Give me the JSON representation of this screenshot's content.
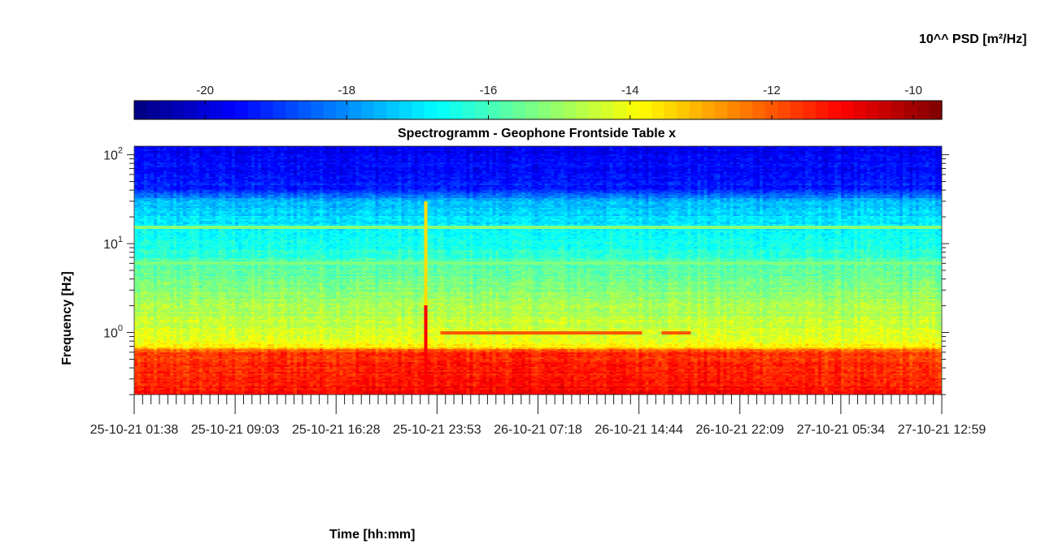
{
  "chart_data": {
    "type": "heatmap",
    "title": "Spectrogramm - Geophone Frontside Table x",
    "xlabel": "Time [hh:mm]",
    "ylabel": "Frequency [Hz]",
    "y_scale": "log",
    "ylim_hz": [
      0.2,
      125
    ],
    "y_ticks": [
      {
        "value": 1,
        "base": "10",
        "exp": "0"
      },
      {
        "value": 10,
        "base": "10",
        "exp": "1"
      },
      {
        "value": 100,
        "base": "10",
        "exp": "2"
      }
    ],
    "x_ticks": [
      "25-10-21  01:38",
      "25-10-21  09:03",
      "25-10-21  16:28",
      "25-10-21  23:53",
      "26-10-21  07:18",
      "26-10-21  14:44",
      "26-10-21  22:09",
      "27-10-21  05:34",
      "27-10-21  12:59"
    ],
    "colorbar": {
      "label": "10^^ PSD [m²/Hz]",
      "range": [
        -21,
        -9.6
      ],
      "ticks": [
        -20,
        -18,
        -16,
        -14,
        -12,
        -10
      ],
      "colormap": "jet",
      "location": "top"
    },
    "psd_profile": [
      {
        "freq_hz": 0.2,
        "log10_psd": -11.3
      },
      {
        "freq_hz": 0.6,
        "log10_psd": -11.8
      },
      {
        "freq_hz": 0.7,
        "log10_psd": -13.8
      },
      {
        "freq_hz": 1.0,
        "log10_psd": -14.3
      },
      {
        "freq_hz": 3.0,
        "log10_psd": -15.2
      },
      {
        "freq_hz": 10.0,
        "log10_psd": -16.5
      },
      {
        "freq_hz": 30.0,
        "log10_psd": -17.5
      },
      {
        "freq_hz": 40.0,
        "log10_psd": -19.2
      },
      {
        "freq_hz": 125.0,
        "log10_psd": -19.8
      }
    ],
    "features": [
      {
        "kind": "horizontal-line",
        "freq_hz": 15,
        "log10_psd": -15.2
      },
      {
        "kind": "horizontal-line",
        "freq_hz": 6,
        "log10_psd": -15.3
      },
      {
        "kind": "transient-spike",
        "time_fraction": 0.36,
        "log10_psd": -11.0
      },
      {
        "kind": "tonal-line",
        "freq_hz": 1.0,
        "time_fraction_range": [
          0.38,
          0.69
        ],
        "log10_psd": -12.0
      }
    ]
  }
}
